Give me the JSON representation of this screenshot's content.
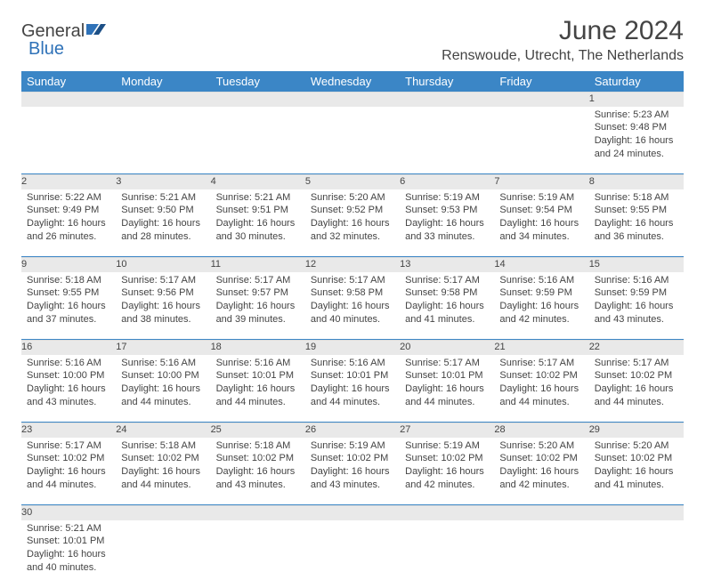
{
  "brand": {
    "general": "General",
    "blue": "Blue"
  },
  "title": "June 2024",
  "location": "Renswoude, Utrecht, The Netherlands",
  "dow": [
    "Sunday",
    "Monday",
    "Tuesday",
    "Wednesday",
    "Thursday",
    "Friday",
    "Saturday"
  ],
  "colors": {
    "header_bg": "#3b86c6",
    "header_text": "#ffffff",
    "daynum_bg": "#e9e9e9",
    "text": "#444444",
    "sep": "#3b86c6"
  },
  "weeks": [
    [
      null,
      null,
      null,
      null,
      null,
      null,
      {
        "n": "1",
        "sr": "Sunrise: 5:23 AM",
        "ss": "Sunset: 9:48 PM",
        "d1": "Daylight: 16 hours",
        "d2": "and 24 minutes."
      }
    ],
    [
      {
        "n": "2",
        "sr": "Sunrise: 5:22 AM",
        "ss": "Sunset: 9:49 PM",
        "d1": "Daylight: 16 hours",
        "d2": "and 26 minutes."
      },
      {
        "n": "3",
        "sr": "Sunrise: 5:21 AM",
        "ss": "Sunset: 9:50 PM",
        "d1": "Daylight: 16 hours",
        "d2": "and 28 minutes."
      },
      {
        "n": "4",
        "sr": "Sunrise: 5:21 AM",
        "ss": "Sunset: 9:51 PM",
        "d1": "Daylight: 16 hours",
        "d2": "and 30 minutes."
      },
      {
        "n": "5",
        "sr": "Sunrise: 5:20 AM",
        "ss": "Sunset: 9:52 PM",
        "d1": "Daylight: 16 hours",
        "d2": "and 32 minutes."
      },
      {
        "n": "6",
        "sr": "Sunrise: 5:19 AM",
        "ss": "Sunset: 9:53 PM",
        "d1": "Daylight: 16 hours",
        "d2": "and 33 minutes."
      },
      {
        "n": "7",
        "sr": "Sunrise: 5:19 AM",
        "ss": "Sunset: 9:54 PM",
        "d1": "Daylight: 16 hours",
        "d2": "and 34 minutes."
      },
      {
        "n": "8",
        "sr": "Sunrise: 5:18 AM",
        "ss": "Sunset: 9:55 PM",
        "d1": "Daylight: 16 hours",
        "d2": "and 36 minutes."
      }
    ],
    [
      {
        "n": "9",
        "sr": "Sunrise: 5:18 AM",
        "ss": "Sunset: 9:55 PM",
        "d1": "Daylight: 16 hours",
        "d2": "and 37 minutes."
      },
      {
        "n": "10",
        "sr": "Sunrise: 5:17 AM",
        "ss": "Sunset: 9:56 PM",
        "d1": "Daylight: 16 hours",
        "d2": "and 38 minutes."
      },
      {
        "n": "11",
        "sr": "Sunrise: 5:17 AM",
        "ss": "Sunset: 9:57 PM",
        "d1": "Daylight: 16 hours",
        "d2": "and 39 minutes."
      },
      {
        "n": "12",
        "sr": "Sunrise: 5:17 AM",
        "ss": "Sunset: 9:58 PM",
        "d1": "Daylight: 16 hours",
        "d2": "and 40 minutes."
      },
      {
        "n": "13",
        "sr": "Sunrise: 5:17 AM",
        "ss": "Sunset: 9:58 PM",
        "d1": "Daylight: 16 hours",
        "d2": "and 41 minutes."
      },
      {
        "n": "14",
        "sr": "Sunrise: 5:16 AM",
        "ss": "Sunset: 9:59 PM",
        "d1": "Daylight: 16 hours",
        "d2": "and 42 minutes."
      },
      {
        "n": "15",
        "sr": "Sunrise: 5:16 AM",
        "ss": "Sunset: 9:59 PM",
        "d1": "Daylight: 16 hours",
        "d2": "and 43 minutes."
      }
    ],
    [
      {
        "n": "16",
        "sr": "Sunrise: 5:16 AM",
        "ss": "Sunset: 10:00 PM",
        "d1": "Daylight: 16 hours",
        "d2": "and 43 minutes."
      },
      {
        "n": "17",
        "sr": "Sunrise: 5:16 AM",
        "ss": "Sunset: 10:00 PM",
        "d1": "Daylight: 16 hours",
        "d2": "and 44 minutes."
      },
      {
        "n": "18",
        "sr": "Sunrise: 5:16 AM",
        "ss": "Sunset: 10:01 PM",
        "d1": "Daylight: 16 hours",
        "d2": "and 44 minutes."
      },
      {
        "n": "19",
        "sr": "Sunrise: 5:16 AM",
        "ss": "Sunset: 10:01 PM",
        "d1": "Daylight: 16 hours",
        "d2": "and 44 minutes."
      },
      {
        "n": "20",
        "sr": "Sunrise: 5:17 AM",
        "ss": "Sunset: 10:01 PM",
        "d1": "Daylight: 16 hours",
        "d2": "and 44 minutes."
      },
      {
        "n": "21",
        "sr": "Sunrise: 5:17 AM",
        "ss": "Sunset: 10:02 PM",
        "d1": "Daylight: 16 hours",
        "d2": "and 44 minutes."
      },
      {
        "n": "22",
        "sr": "Sunrise: 5:17 AM",
        "ss": "Sunset: 10:02 PM",
        "d1": "Daylight: 16 hours",
        "d2": "and 44 minutes."
      }
    ],
    [
      {
        "n": "23",
        "sr": "Sunrise: 5:17 AM",
        "ss": "Sunset: 10:02 PM",
        "d1": "Daylight: 16 hours",
        "d2": "and 44 minutes."
      },
      {
        "n": "24",
        "sr": "Sunrise: 5:18 AM",
        "ss": "Sunset: 10:02 PM",
        "d1": "Daylight: 16 hours",
        "d2": "and 44 minutes."
      },
      {
        "n": "25",
        "sr": "Sunrise: 5:18 AM",
        "ss": "Sunset: 10:02 PM",
        "d1": "Daylight: 16 hours",
        "d2": "and 43 minutes."
      },
      {
        "n": "26",
        "sr": "Sunrise: 5:19 AM",
        "ss": "Sunset: 10:02 PM",
        "d1": "Daylight: 16 hours",
        "d2": "and 43 minutes."
      },
      {
        "n": "27",
        "sr": "Sunrise: 5:19 AM",
        "ss": "Sunset: 10:02 PM",
        "d1": "Daylight: 16 hours",
        "d2": "and 42 minutes."
      },
      {
        "n": "28",
        "sr": "Sunrise: 5:20 AM",
        "ss": "Sunset: 10:02 PM",
        "d1": "Daylight: 16 hours",
        "d2": "and 42 minutes."
      },
      {
        "n": "29",
        "sr": "Sunrise: 5:20 AM",
        "ss": "Sunset: 10:02 PM",
        "d1": "Daylight: 16 hours",
        "d2": "and 41 minutes."
      }
    ],
    [
      {
        "n": "30",
        "sr": "Sunrise: 5:21 AM",
        "ss": "Sunset: 10:01 PM",
        "d1": "Daylight: 16 hours",
        "d2": "and 40 minutes."
      },
      null,
      null,
      null,
      null,
      null,
      null
    ]
  ]
}
